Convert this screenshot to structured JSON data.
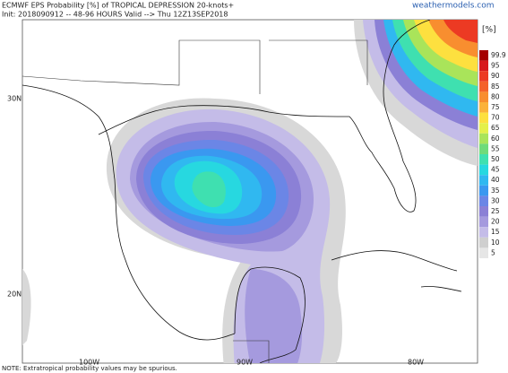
{
  "header": {
    "line1": "ECMWF EPS Probability [%] of TROPICAL DEPRESSION 20-knots+",
    "line2": "Init: 2018090912 -- 48-96 HOURS Valid --> Thu 12Z13SEP2018",
    "source": "weathermodels.com"
  },
  "legend": {
    "unit": "[%]",
    "levels": [
      {
        "label": "99.9",
        "color": "#a50000"
      },
      {
        "label": "95",
        "color": "#d7191c"
      },
      {
        "label": "90",
        "color": "#ec3a23"
      },
      {
        "label": "85",
        "color": "#f4622a"
      },
      {
        "label": "80",
        "color": "#f88e2f"
      },
      {
        "label": "75",
        "color": "#fbb23a"
      },
      {
        "label": "70",
        "color": "#fde03f"
      },
      {
        "label": "65",
        "color": "#e4f04a"
      },
      {
        "label": "60",
        "color": "#a9e45a"
      },
      {
        "label": "55",
        "color": "#6fdb7a"
      },
      {
        "label": "50",
        "color": "#3fe0b0"
      },
      {
        "label": "45",
        "color": "#27d8e0"
      },
      {
        "label": "40",
        "color": "#30b8f0"
      },
      {
        "label": "35",
        "color": "#3a98f0"
      },
      {
        "label": "30",
        "color": "#6b86e6"
      },
      {
        "label": "25",
        "color": "#8b80d6"
      },
      {
        "label": "20",
        "color": "#a59ade"
      },
      {
        "label": "15",
        "color": "#c4bce8"
      },
      {
        "label": "10",
        "color": "#cfcfcf"
      },
      {
        "label": "5",
        "color": "#e6e6e6"
      }
    ]
  },
  "axes": {
    "lat_labels": [
      "30N",
      "20N"
    ],
    "lon_labels": [
      "100W",
      "90W",
      "80W"
    ]
  },
  "note": "NOTE: Extratropical probability values may be spurious."
}
